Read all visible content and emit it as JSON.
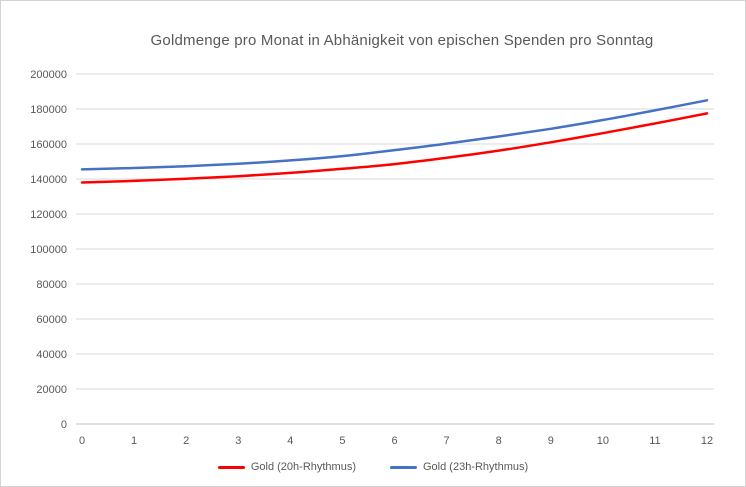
{
  "title": "Goldmenge pro Monat in Abhänigkeit von epischen Spenden pro Sonntag",
  "colors": {
    "title_text": "#595959",
    "axis_text": "#595959",
    "gridline": "#d9d9d9",
    "axis_line": "#bfbfbf",
    "background": "#ffffff",
    "border": "#d3d3d3"
  },
  "chart_data": {
    "type": "line",
    "title": "Goldmenge pro Monat in Abhänigkeit von epischen Spenden pro Sonntag",
    "xlabel": "",
    "ylabel": "",
    "x": [
      0,
      1,
      2,
      3,
      4,
      5,
      6,
      7,
      8,
      9,
      10,
      11,
      12
    ],
    "series": [
      {
        "name": "Gold (20h-Rhythmus)",
        "color": "#ff0000",
        "values": [
          138000,
          138900,
          140100,
          141600,
          143500,
          145800,
          148500,
          152100,
          156200,
          161000,
          166200,
          171700,
          177500
        ]
      },
      {
        "name": "Gold (23h-Rhythmus)",
        "color": "#4472c4",
        "values": [
          145500,
          146300,
          147300,
          148700,
          150600,
          153100,
          156500,
          160200,
          164300,
          168700,
          173700,
          179200,
          185000
        ]
      }
    ],
    "ylim": [
      0,
      200000
    ],
    "ytick_step": 20000,
    "yticks": [
      0,
      20000,
      40000,
      60000,
      80000,
      100000,
      120000,
      140000,
      160000,
      180000,
      200000
    ],
    "xticks": [
      0,
      1,
      2,
      3,
      4,
      5,
      6,
      7,
      8,
      9,
      10,
      11,
      12
    ],
    "grid": true,
    "legend_position": "bottom",
    "line_smooth": true
  }
}
